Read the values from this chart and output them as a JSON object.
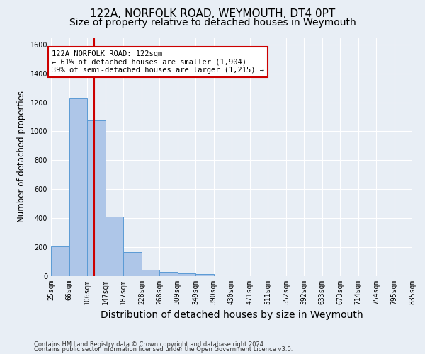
{
  "title": "122A, NORFOLK ROAD, WEYMOUTH, DT4 0PT",
  "subtitle": "Size of property relative to detached houses in Weymouth",
  "xlabel": "Distribution of detached houses by size in Weymouth",
  "ylabel": "Number of detached properties",
  "footnote1": "Contains HM Land Registry data © Crown copyright and database right 2024.",
  "footnote2": "Contains public sector information licensed under the Open Government Licence v3.0.",
  "bin_edges": [
    25,
    66,
    106,
    147,
    187,
    228,
    268,
    309,
    349,
    390,
    430,
    471,
    511,
    552,
    592,
    633,
    673,
    714,
    754,
    795,
    835
  ],
  "bin_labels": [
    "25sqm",
    "66sqm",
    "106sqm",
    "147sqm",
    "187sqm",
    "228sqm",
    "268sqm",
    "309sqm",
    "349sqm",
    "390sqm",
    "430sqm",
    "471sqm",
    "511sqm",
    "552sqm",
    "592sqm",
    "633sqm",
    "673sqm",
    "714sqm",
    "754sqm",
    "795sqm",
    "835sqm"
  ],
  "bar_heights": [
    205,
    1225,
    1075,
    410,
    165,
    45,
    28,
    18,
    15,
    0,
    0,
    0,
    0,
    0,
    0,
    0,
    0,
    0,
    0,
    0
  ],
  "bar_color": "#aec6e8",
  "bar_edgecolor": "#5b9bd5",
  "vline_x": 122,
  "vline_color": "#cc0000",
  "annotation_line1": "122A NORFOLK ROAD: 122sqm",
  "annotation_line2": "← 61% of detached houses are smaller (1,904)",
  "annotation_line3": "39% of semi-detached houses are larger (1,215) →",
  "annotation_box_edgecolor": "#cc0000",
  "annotation_box_facecolor": "#ffffff",
  "ylim": [
    0,
    1650
  ],
  "yticks": [
    0,
    200,
    400,
    600,
    800,
    1000,
    1200,
    1400,
    1600
  ],
  "background_color": "#e8eef5",
  "grid_color": "#ffffff",
  "title_fontsize": 11,
  "subtitle_fontsize": 10,
  "xlabel_fontsize": 10,
  "ylabel_fontsize": 8.5,
  "tick_fontsize": 7,
  "annotation_fontsize": 7.5,
  "footnote_fontsize": 6
}
